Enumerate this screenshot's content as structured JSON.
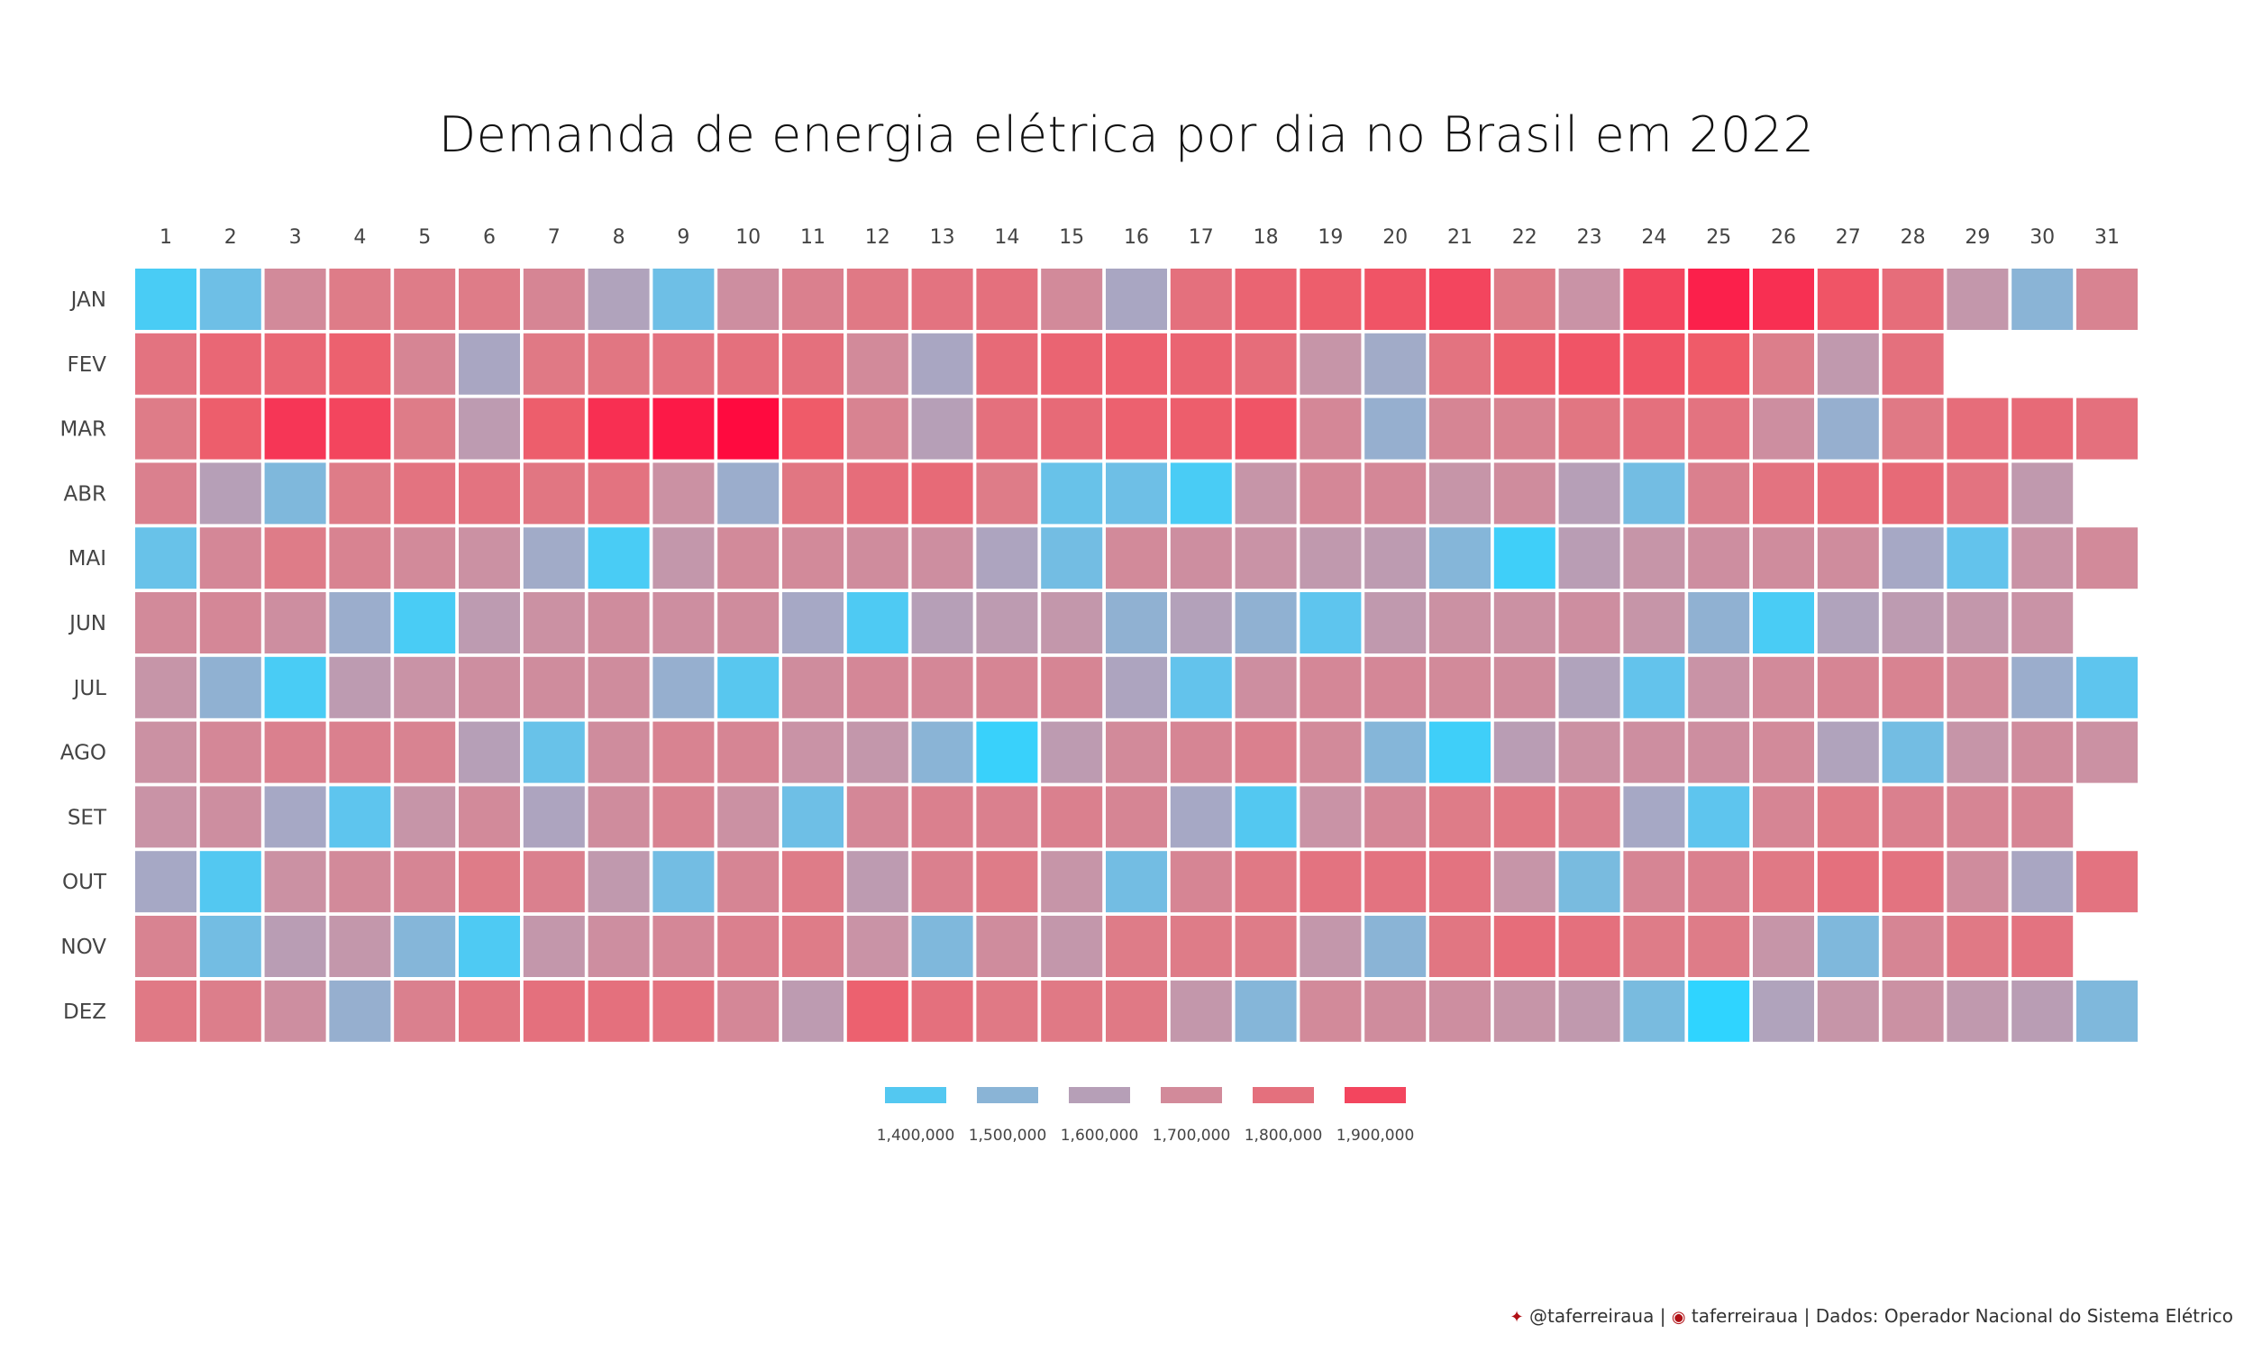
{
  "chart_data": {
    "type": "heatmap",
    "title": "Demanda de energia elétrica por dia no Brasil em 2022",
    "x_labels": [
      "1",
      "2",
      "3",
      "4",
      "5",
      "6",
      "7",
      "8",
      "9",
      "10",
      "11",
      "12",
      "13",
      "14",
      "15",
      "16",
      "17",
      "18",
      "19",
      "20",
      "21",
      "22",
      "23",
      "24",
      "25",
      "26",
      "27",
      "28",
      "29",
      "30",
      "31"
    ],
    "y_labels": [
      "JAN",
      "FEV",
      "MAR",
      "ABR",
      "MAI",
      "JUN",
      "JUL",
      "AGO",
      "SET",
      "OUT",
      "NOV",
      "DEZ"
    ],
    "values": [
      [
        1380000,
        1450000,
        1700000,
        1760000,
        1760000,
        1760000,
        1720000,
        1580000,
        1450000,
        1680000,
        1740000,
        1770000,
        1790000,
        1800000,
        1700000,
        1560000,
        1800000,
        1840000,
        1860000,
        1880000,
        1900000,
        1760000,
        1660000,
        1900000,
        1950000,
        1930000,
        1880000,
        1810000,
        1640000,
        1500000,
        1730000
      ],
      [
        1790000,
        1830000,
        1830000,
        1850000,
        1720000,
        1560000,
        1770000,
        1780000,
        1790000,
        1800000,
        1800000,
        1700000,
        1560000,
        1820000,
        1840000,
        1850000,
        1840000,
        1810000,
        1650000,
        1540000,
        1790000,
        1860000,
        1880000,
        1880000,
        1870000,
        1750000,
        1630000,
        1800000,
        null,
        null,
        null
      ],
      [
        1760000,
        1860000,
        1920000,
        1900000,
        1760000,
        1620000,
        1860000,
        1930000,
        1960000,
        1980000,
        1870000,
        1730000,
        1600000,
        1800000,
        1820000,
        1850000,
        1860000,
        1880000,
        1710000,
        1520000,
        1720000,
        1730000,
        1780000,
        1800000,
        1790000,
        1680000,
        1520000,
        1770000,
        1810000,
        1820000,
        1800000
      ],
      [
        1740000,
        1600000,
        1480000,
        1760000,
        1790000,
        1790000,
        1780000,
        1790000,
        1670000,
        1530000,
        1780000,
        1810000,
        1820000,
        1760000,
        1440000,
        1450000,
        1380000,
        1650000,
        1710000,
        1710000,
        1650000,
        1690000,
        1600000,
        1460000,
        1740000,
        1790000,
        1810000,
        1820000,
        1790000,
        1630000,
        null
      ],
      [
        1440000,
        1710000,
        1760000,
        1730000,
        1700000,
        1670000,
        1540000,
        1380000,
        1640000,
        1700000,
        1700000,
        1690000,
        1680000,
        1570000,
        1460000,
        1700000,
        1680000,
        1660000,
        1630000,
        1620000,
        1490000,
        1360000,
        1610000,
        1650000,
        1680000,
        1690000,
        1690000,
        1550000,
        1430000,
        1660000,
        1700000
      ],
      [
        1700000,
        1710000,
        1680000,
        1530000,
        1380000,
        1620000,
        1670000,
        1690000,
        1680000,
        1690000,
        1550000,
        1390000,
        1600000,
        1620000,
        1640000,
        1510000,
        1590000,
        1510000,
        1420000,
        1630000,
        1670000,
        1670000,
        1680000,
        1650000,
        1510000,
        1380000,
        1580000,
        1620000,
        1640000,
        1660000,
        null
      ],
      [
        1650000,
        1510000,
        1380000,
        1620000,
        1660000,
        1680000,
        1690000,
        1690000,
        1520000,
        1410000,
        1690000,
        1710000,
        1710000,
        1720000,
        1720000,
        1570000,
        1430000,
        1680000,
        1710000,
        1710000,
        1700000,
        1690000,
        1580000,
        1430000,
        1660000,
        1700000,
        1720000,
        1730000,
        1700000,
        1530000,
        1420000
      ],
      [
        1670000,
        1710000,
        1740000,
        1740000,
        1730000,
        1600000,
        1440000,
        1690000,
        1730000,
        1720000,
        1660000,
        1640000,
        1500000,
        1350000,
        1620000,
        1700000,
        1720000,
        1740000,
        1700000,
        1490000,
        1360000,
        1610000,
        1670000,
        1680000,
        1680000,
        1700000,
        1580000,
        1460000,
        1650000,
        1690000,
        1670000
      ],
      [
        1660000,
        1680000,
        1550000,
        1420000,
        1650000,
        1700000,
        1570000,
        1690000,
        1730000,
        1670000,
        1450000,
        1710000,
        1740000,
        1740000,
        1740000,
        1720000,
        1550000,
        1400000,
        1660000,
        1710000,
        1760000,
        1770000,
        1740000,
        1550000,
        1420000,
        1720000,
        1760000,
        1740000,
        1720000,
        1720000,
        null
      ],
      [
        1550000,
        1400000,
        1670000,
        1700000,
        1720000,
        1760000,
        1740000,
        1630000,
        1460000,
        1720000,
        1760000,
        1620000,
        1740000,
        1760000,
        1650000,
        1460000,
        1720000,
        1770000,
        1790000,
        1790000,
        1790000,
        1650000,
        1470000,
        1720000,
        1740000,
        1770000,
        1800000,
        1790000,
        1690000,
        1560000,
        1790000
      ],
      [
        1730000,
        1460000,
        1610000,
        1640000,
        1490000,
        1390000,
        1640000,
        1680000,
        1710000,
        1740000,
        1760000,
        1660000,
        1480000,
        1690000,
        1640000,
        1760000,
        1760000,
        1760000,
        1640000,
        1500000,
        1780000,
        1810000,
        1800000,
        1760000,
        1760000,
        1650000,
        1480000,
        1720000,
        1770000,
        1790000,
        null
      ],
      [
        1770000,
        1750000,
        1680000,
        1520000,
        1740000,
        1780000,
        1800000,
        1800000,
        1790000,
        1710000,
        1620000,
        1850000,
        1800000,
        1770000,
        1770000,
        1770000,
        1640000,
        1490000,
        1700000,
        1690000,
        1680000,
        1650000,
        1630000,
        1470000,
        1330000,
        1580000,
        1650000,
        1670000,
        1630000,
        1610000,
        1480000
      ]
    ],
    "legend": {
      "values": [
        1400000,
        1500000,
        1600000,
        1700000,
        1800000,
        1900000
      ],
      "labels": [
        "1,400,000",
        "1,500,000",
        "1,600,000",
        "1,700,000",
        "1,800,000",
        "1,900,000"
      ]
    },
    "color_scale": {
      "min": 1330000,
      "max": 1980000,
      "stops": [
        "#2fd4ff",
        "#67c2ea",
        "#a5a9c6",
        "#c894a7",
        "#df7b87",
        "#ef5a69",
        "#ff0a3f"
      ]
    }
  },
  "footer": {
    "twitter_icon": "twitter-icon",
    "twitter": "@taferreiraua",
    "github_icon": "github-icon",
    "github": "taferreiraua",
    "source": "Dados: Operador Nacional do Sistema Elétrico"
  }
}
